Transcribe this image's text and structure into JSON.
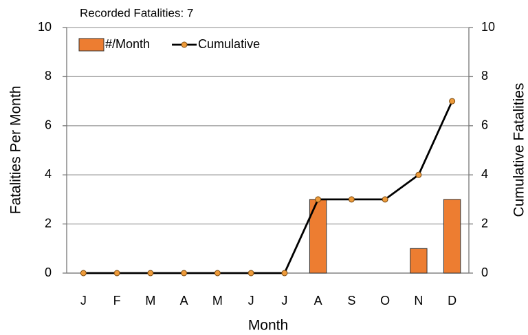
{
  "chart_data": {
    "type": "bar",
    "title": "Recorded Fatalities: 7",
    "x_label": "Month",
    "y_label": "Fatalities Per Month",
    "y2_label": "Cumulative Fatalities",
    "categories": [
      "J",
      "F",
      "M",
      "A",
      "M",
      "J",
      "J",
      "A",
      "S",
      "O",
      "N",
      "D"
    ],
    "series": [
      {
        "name": "#/Month",
        "type": "bar",
        "color": "#ed7d31",
        "values": [
          0,
          0,
          0,
          0,
          0,
          0,
          0,
          3,
          0,
          0,
          1,
          3
        ]
      },
      {
        "name": "Cumulative",
        "type": "line",
        "axis": "y2",
        "color": "#000000",
        "marker_color": "#ed9a3a",
        "values": [
          0,
          0,
          0,
          0,
          0,
          0,
          0,
          3,
          3,
          3,
          4,
          7
        ]
      }
    ],
    "ylim": [
      0,
      10
    ],
    "yticks": [
      0,
      2,
      4,
      6,
      8,
      10
    ],
    "y2lim": [
      0,
      10
    ],
    "y2ticks": [
      0,
      2,
      4,
      6,
      8,
      10
    ],
    "grid": true,
    "legend": "top-left"
  }
}
